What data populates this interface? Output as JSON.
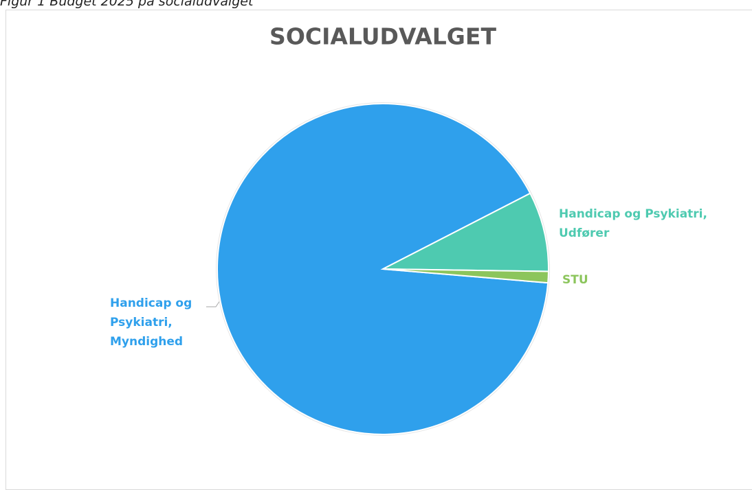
{
  "caption": "Figur 1 Budget 2025 på socialudvalget",
  "chart_data": {
    "type": "pie",
    "title": "SOCIALUDVALGET",
    "categories": [
      "Handicap og Psykiatri, Myndighed",
      "Handicap og Psykiatri, Udfører",
      "STU"
    ],
    "values": [
      91.1,
      7.8,
      1.1
    ],
    "colors": [
      "#2fa0ec",
      "#4ecab0",
      "#8cc55c"
    ]
  }
}
